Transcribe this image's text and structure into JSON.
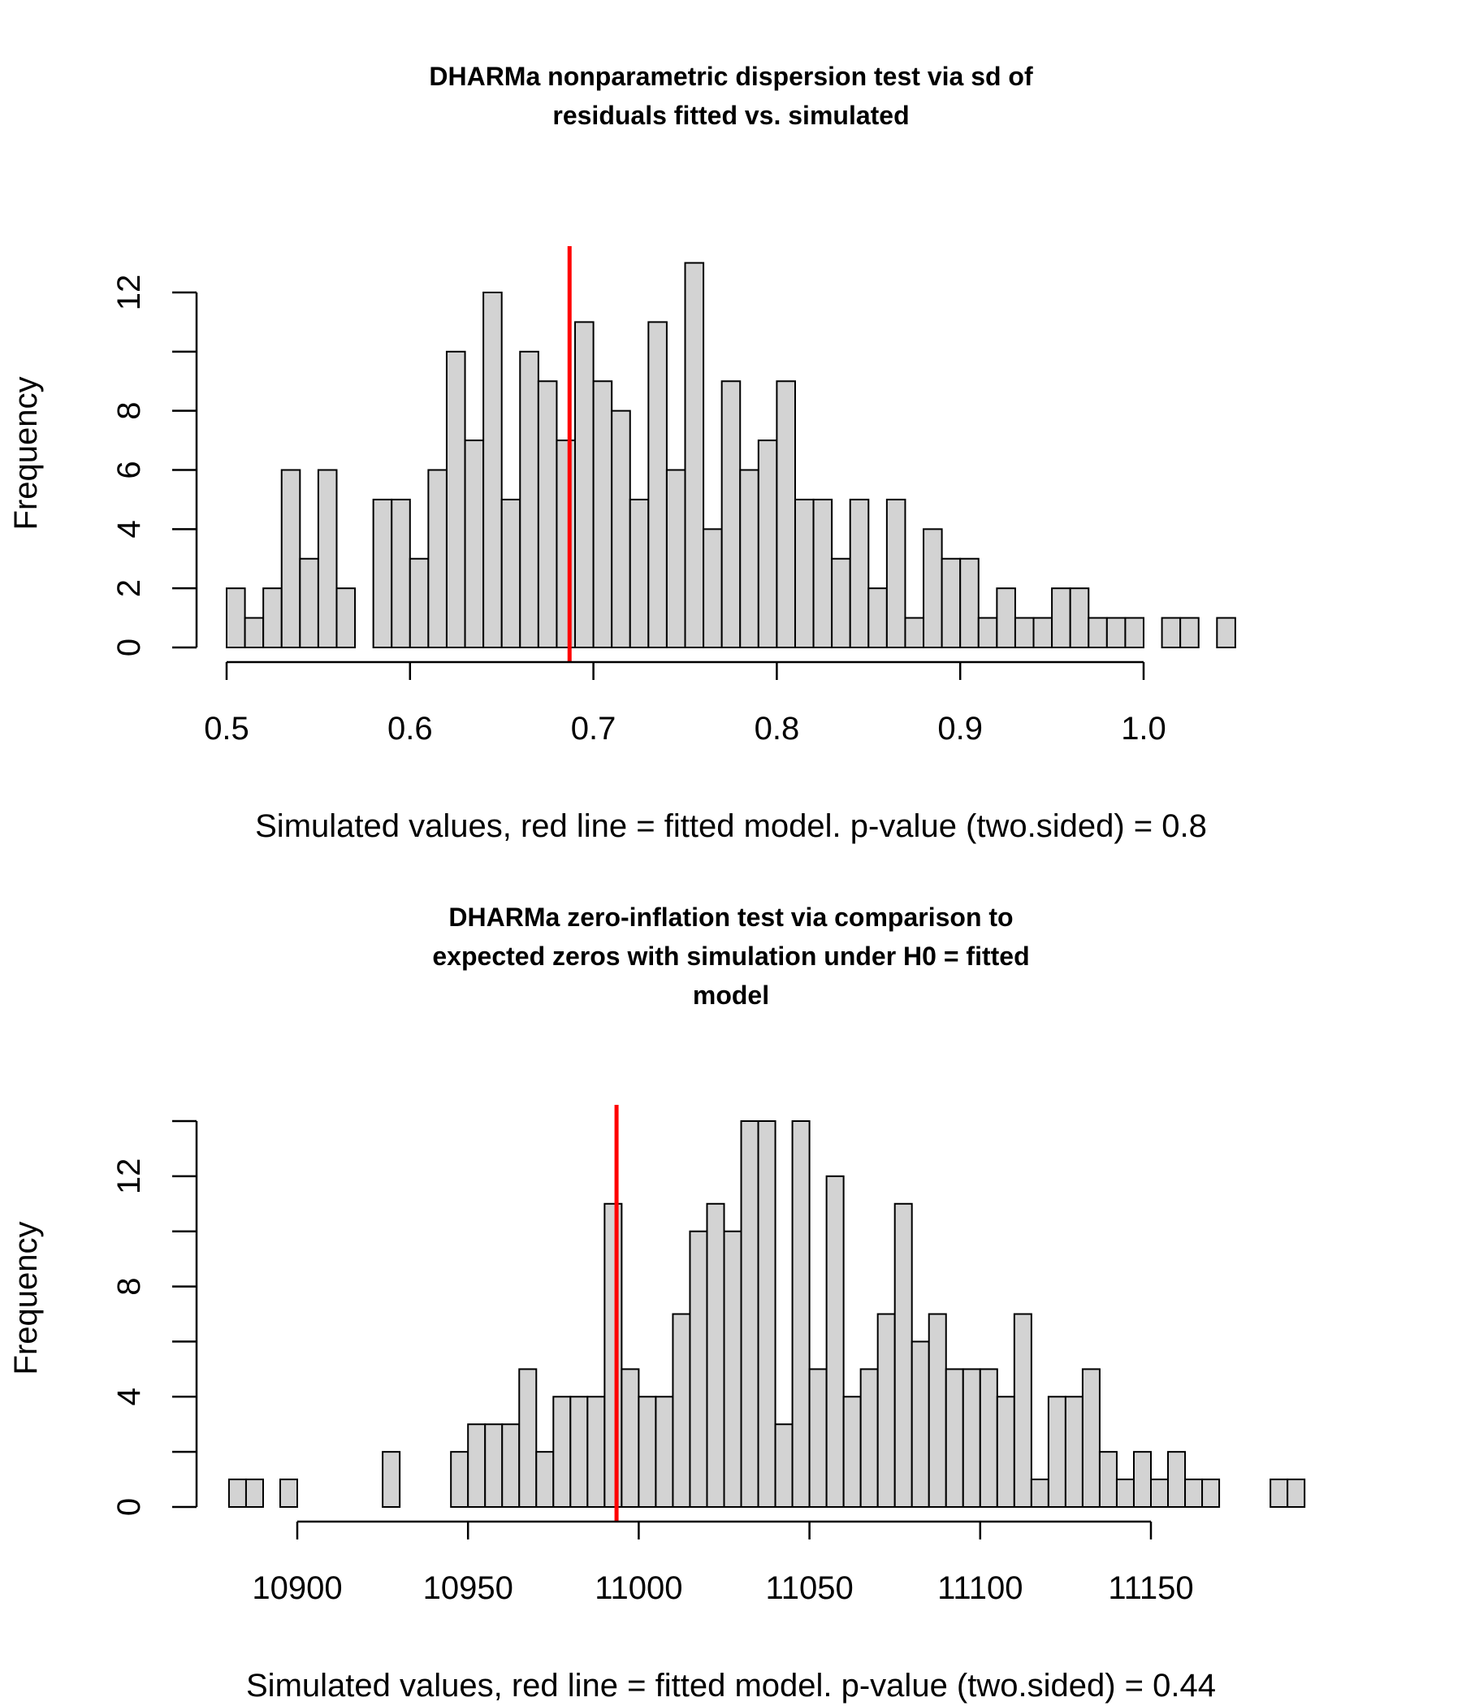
{
  "chart_data": [
    {
      "type": "bar",
      "title": [
        "DHARMa nonparametric dispersion test via sd of",
        "residuals fitted vs. simulated"
      ],
      "xlabel": "Simulated values, red line = fitted model. p-value (two.sided) = 0.8",
      "ylabel": "Frequency",
      "bin_start": 0.5,
      "bin_width": 0.01,
      "counts": [
        2,
        1,
        2,
        6,
        3,
        6,
        2,
        0,
        5,
        5,
        3,
        6,
        10,
        7,
        12,
        5,
        10,
        9,
        7,
        11,
        9,
        8,
        5,
        11,
        6,
        13,
        4,
        9,
        6,
        7,
        9,
        5,
        5,
        3,
        5,
        2,
        5,
        1,
        4,
        3,
        3,
        1,
        2,
        1,
        1,
        2,
        2,
        1,
        1,
        1,
        0,
        1,
        1,
        0,
        1
      ],
      "fitted_value": 0.687,
      "xlim": [
        0.5,
        1.055
      ],
      "ylim": [
        0,
        13
      ],
      "x_ticks": [
        0.5,
        0.6,
        0.7,
        0.8,
        0.9,
        1.0
      ],
      "x_tick_labels": [
        "0.5",
        "0.6",
        "0.7",
        "0.8",
        "0.9",
        "1.0"
      ],
      "y_ticks": [
        0,
        2,
        4,
        6,
        8,
        10,
        12
      ],
      "y_tick_labels": [
        "0",
        "2",
        "4",
        "6",
        "8",
        "",
        "12"
      ],
      "line_color": "#ff0000",
      "bar_color": "#d3d3d3"
    },
    {
      "type": "bar",
      "title": [
        "DHARMa zero-inflation test via comparison to",
        "expected zeros with simulation under H0 = fitted",
        "model"
      ],
      "xlabel": "Simulated values, red line = fitted model. p-value (two.sided) = 0.44",
      "ylabel": "Frequency",
      "bin_start": 10880,
      "bin_width": 5,
      "counts": [
        1,
        1,
        0,
        1,
        0,
        0,
        0,
        0,
        0,
        2,
        0,
        0,
        0,
        2,
        3,
        3,
        3,
        5,
        2,
        4,
        4,
        4,
        11,
        5,
        4,
        4,
        7,
        10,
        11,
        10,
        14,
        14,
        3,
        14,
        5,
        12,
        4,
        5,
        7,
        11,
        6,
        7,
        5,
        5,
        5,
        4,
        7,
        1,
        4,
        4,
        5,
        2,
        1,
        2,
        1,
        2,
        1,
        1,
        0,
        0,
        0,
        1,
        1
      ],
      "fitted_value": 10993.5,
      "xlim": [
        10880,
        11175
      ],
      "ylim": [
        0,
        14
      ],
      "x_ticks": [
        10900,
        10950,
        11000,
        11050,
        11100,
        11150
      ],
      "x_tick_labels": [
        "10900",
        "10950",
        "11000",
        "11050",
        "11100",
        "11150"
      ],
      "y_ticks": [
        0,
        2,
        4,
        6,
        8,
        10,
        12,
        14
      ],
      "y_tick_labels": [
        "0",
        "",
        "4",
        "",
        "8",
        "",
        "12",
        ""
      ],
      "line_color": "#ff0000",
      "bar_color": "#d3d3d3"
    }
  ]
}
